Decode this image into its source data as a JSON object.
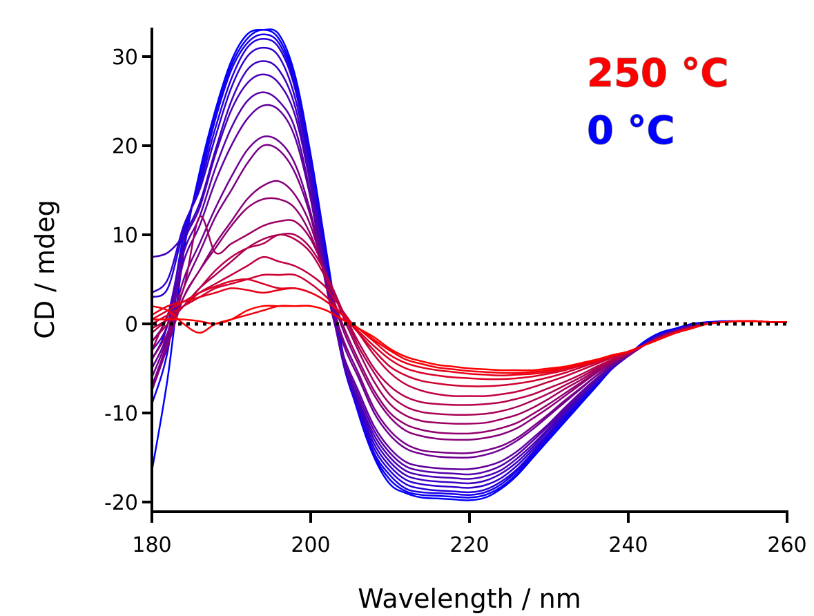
{
  "chart_data": {
    "type": "line",
    "title": "",
    "xlabel": "Wavelength / nm",
    "ylabel": "CD / mdeg",
    "xlim": [
      180,
      260
    ],
    "ylim": [
      -20,
      33
    ],
    "xticks": [
      180,
      200,
      220,
      240,
      260
    ],
    "yticks": [
      -20,
      -10,
      0,
      10,
      20,
      30
    ],
    "legend": {
      "placement": "top-right",
      "entries": [
        {
          "label": "250 °C",
          "color": "#ff0000"
        },
        {
          "label": "0 °C",
          "color": "#0000ff"
        }
      ]
    },
    "zero_line": {
      "y": 0,
      "style": "dotted",
      "color": "#000000"
    },
    "color_gradient": {
      "start": "#0000ff",
      "end": "#ff0000"
    },
    "x": [
      180,
      182,
      184,
      186,
      188,
      190,
      192,
      194,
      196,
      198,
      200,
      202,
      204,
      206,
      208,
      210,
      212,
      214,
      216,
      218,
      220,
      222,
      224,
      226,
      228,
      230,
      232,
      234,
      236,
      238,
      240,
      242,
      244,
      246,
      248,
      250,
      252,
      254,
      256,
      258,
      260
    ],
    "series": [
      {
        "values": [
          -16.5,
          -6,
          8,
          17,
          24,
          29.5,
          32.5,
          33,
          32.5,
          28,
          19,
          8,
          -3,
          -10,
          -15,
          -18,
          -19,
          -19.5,
          -19.6,
          -19.7,
          -19.8,
          -19.5,
          -18.5,
          -17,
          -15,
          -13,
          -11,
          -9,
          -7,
          -5,
          -3.5,
          -2,
          -1,
          -0.5,
          0,
          0.2,
          0.3,
          0.3,
          0.3,
          0.2,
          0.2
        ]
      },
      {
        "values": [
          -9,
          -3,
          9,
          16.5,
          23.5,
          29,
          32,
          33,
          32,
          27.5,
          18.5,
          7.5,
          -3.5,
          -10,
          -14.8,
          -17.5,
          -18.8,
          -19.2,
          -19.3,
          -19.4,
          -19.5,
          -19.2,
          -18.3,
          -16.8,
          -14.8,
          -12.8,
          -10.8,
          -8.8,
          -6.8,
          -5,
          -3.5,
          -2.1,
          -1.1,
          -0.6,
          -0.1,
          0.1,
          0.2,
          0.3,
          0.3,
          0.2,
          0.2
        ]
      },
      {
        "values": [
          -4,
          0,
          10,
          16,
          23,
          28.5,
          31.5,
          32.5,
          31.5,
          27,
          18,
          7,
          -4,
          -9.8,
          -14.5,
          -17,
          -18.5,
          -18.9,
          -19.0,
          -19.1,
          -19.2,
          -18.9,
          -18.0,
          -16.5,
          -14.6,
          -12.6,
          -10.6,
          -8.6,
          -6.7,
          -5,
          -3.6,
          -2.2,
          -1.2,
          -0.6,
          -0.1,
          0.1,
          0.2,
          0.3,
          0.3,
          0.2,
          0.2
        ]
      },
      {
        "values": [
          3,
          4,
          10.5,
          15.5,
          22,
          27.5,
          31,
          32,
          31,
          26.5,
          17.5,
          6.5,
          -4,
          -9.5,
          -14,
          -16.5,
          -18,
          -18.5,
          -18.7,
          -18.8,
          -18.9,
          -18.6,
          -17.7,
          -16.3,
          -14.4,
          -12.4,
          -10.4,
          -8.4,
          -6.6,
          -4.9,
          -3.6,
          -2.3,
          -1.3,
          -0.7,
          -0.2,
          0.1,
          0.2,
          0.3,
          0.3,
          0.2,
          0.2
        ]
      },
      {
        "values": [
          3.5,
          5,
          11,
          15,
          21,
          26.5,
          30,
          31,
          30,
          25.5,
          17,
          6,
          -4,
          -9.2,
          -13.5,
          -16,
          -17.5,
          -18,
          -18.2,
          -18.3,
          -18.4,
          -18.1,
          -17.3,
          -15.9,
          -14.1,
          -12.2,
          -10.2,
          -8.3,
          -6.5,
          -4.9,
          -3.6,
          -2.3,
          -1.3,
          -0.7,
          -0.2,
          0.1,
          0.2,
          0.3,
          0.3,
          0.2,
          0.2
        ]
      },
      {
        "values": [
          7.5,
          8,
          10,
          13.5,
          19.5,
          25,
          28.5,
          29.5,
          28.5,
          24.5,
          16,
          5.5,
          -4,
          -8.8,
          -13,
          -15.5,
          -17,
          -17.5,
          -17.7,
          -17.8,
          -17.9,
          -17.6,
          -16.8,
          -15.5,
          -13.8,
          -11.9,
          -10,
          -8.2,
          -6.4,
          -4.8,
          -3.6,
          -2.3,
          -1.3,
          -0.7,
          -0.2,
          0.1,
          0.2,
          0.3,
          0.3,
          0.2,
          0.2
        ]
      },
      {
        "values": [
          -2,
          1,
          9,
          13,
          19,
          24,
          27,
          28,
          27,
          23.5,
          15.5,
          5,
          -3.8,
          -8.5,
          -12.5,
          -15,
          -16.5,
          -17,
          -17.2,
          -17.3,
          -17.4,
          -17.1,
          -16.4,
          -15.1,
          -13.5,
          -11.7,
          -9.8,
          -8.1,
          -6.3,
          -4.8,
          -3.6,
          -2.3,
          -1.3,
          -0.7,
          -0.2,
          0.1,
          0.2,
          0.3,
          0.3,
          0.2,
          0.2
        ]
      },
      {
        "values": [
          -3,
          0,
          8,
          12,
          17.5,
          22,
          25,
          26,
          25,
          22,
          14.5,
          4.5,
          -3.5,
          -8,
          -12,
          -14.5,
          -16,
          -16.5,
          -16.7,
          -16.8,
          -16.9,
          -16.6,
          -15.9,
          -14.7,
          -13.1,
          -11.4,
          -9.6,
          -7.9,
          -6.2,
          -4.7,
          -3.6,
          -2.4,
          -1.4,
          -0.8,
          -0.3,
          0.1,
          0.2,
          0.3,
          0.3,
          0.2,
          0.2
        ]
      },
      {
        "values": [
          -5,
          -1,
          7,
          11,
          16,
          20,
          23,
          24.5,
          24,
          21,
          14,
          4,
          -3.2,
          -7.5,
          -11.5,
          -14,
          -15.5,
          -16,
          -16.2,
          -16.3,
          -16.3,
          -16.0,
          -15.4,
          -14.3,
          -12.8,
          -11.2,
          -9.4,
          -7.7,
          -6.1,
          -4.7,
          -3.6,
          -2.4,
          -1.4,
          -0.8,
          -0.3,
          0.1,
          0.2,
          0.3,
          0.3,
          0.2,
          0.2
        ]
      },
      {
        "values": [
          -6,
          -1.5,
          5,
          9,
          13,
          16.5,
          19.5,
          21,
          20.5,
          18,
          12.5,
          4.5,
          -2,
          -6,
          -10,
          -12.5,
          -14,
          -14.6,
          -14.9,
          -15.0,
          -15.0,
          -14.7,
          -14.1,
          -13.1,
          -11.8,
          -10.3,
          -8.8,
          -7.3,
          -5.8,
          -4.5,
          -3.5,
          -2.4,
          -1.5,
          -0.8,
          -0.3,
          0.1,
          0.2,
          0.3,
          0.3,
          0.2,
          0.2
        ]
      },
      {
        "values": [
          -7,
          -2,
          4,
          8,
          12,
          15,
          18,
          20,
          19.5,
          17,
          12,
          4.5,
          -1.5,
          -5.5,
          -9.5,
          -12,
          -13.5,
          -14.2,
          -14.4,
          -14.5,
          -14.5,
          -14.2,
          -13.7,
          -12.8,
          -11.5,
          -10.1,
          -8.6,
          -7.2,
          -5.8,
          -4.5,
          -3.5,
          -2.4,
          -1.5,
          -0.8,
          -0.3,
          0.1,
          0.2,
          0.3,
          0.3,
          0.2,
          0.2
        ]
      },
      {
        "values": [
          -7.5,
          -2.5,
          3,
          6,
          9,
          11.5,
          14,
          15.5,
          16,
          14.5,
          11,
          5,
          -0.5,
          -4.5,
          -8,
          -10.5,
          -12,
          -12.6,
          -12.9,
          -13.0,
          -13.0,
          -12.8,
          -12.4,
          -11.7,
          -10.6,
          -9.4,
          -8.1,
          -6.8,
          -5.5,
          -4.3,
          -3.4,
          -2.4,
          -1.5,
          -0.9,
          -0.4,
          0,
          0.2,
          0.3,
          0.3,
          0.2,
          0.2
        ]
      },
      {
        "values": [
          -4,
          -1,
          3,
          6,
          8.5,
          11,
          13,
          14,
          14,
          13,
          10,
          5,
          0,
          -4,
          -7.5,
          -10,
          -11.3,
          -11.9,
          -12.2,
          -12.3,
          -12.3,
          -12.1,
          -11.7,
          -11.1,
          -10.1,
          -9.0,
          -7.8,
          -6.6,
          -5.4,
          -4.3,
          -3.4,
          -2.4,
          -1.5,
          -0.9,
          -0.4,
          0,
          0.2,
          0.3,
          0.3,
          0.2,
          0.2
        ]
      },
      {
        "values": [
          -3,
          1,
          4,
          12,
          8,
          9,
          10,
          11,
          11.5,
          11.5,
          9.5,
          5.5,
          1,
          -3,
          -6.5,
          -9,
          -10.3,
          -10.9,
          -11.1,
          -11.2,
          -11.2,
          -11.1,
          -10.7,
          -10.2,
          -9.4,
          -8.4,
          -7.3,
          -6.3,
          -5.2,
          -4.2,
          -3.4,
          -2.4,
          -1.6,
          -0.9,
          -0.4,
          0,
          0.2,
          0.3,
          0.3,
          0.2,
          0.2
        ]
      },
      {
        "values": [
          -2,
          0,
          2,
          4,
          5.5,
          7,
          8.5,
          9.5,
          10,
          10,
          8.5,
          5.5,
          1.5,
          -2.5,
          -5.5,
          -8,
          -9.3,
          -9.9,
          -10.1,
          -10.2,
          -10.2,
          -10.1,
          -9.8,
          -9.3,
          -8.6,
          -7.8,
          -6.9,
          -6.0,
          -5.0,
          -4.1,
          -3.3,
          -2.4,
          -1.6,
          -0.9,
          -0.4,
          0,
          0.2,
          0.3,
          0.3,
          0.2,
          0.2
        ]
      },
      {
        "values": [
          -1,
          0.5,
          2,
          4,
          6,
          7.5,
          8.5,
          9,
          10,
          9.5,
          8,
          5,
          1.5,
          -2,
          -5,
          -7,
          -8.2,
          -8.8,
          -9.0,
          -9.1,
          -9.1,
          -9.0,
          -8.8,
          -8.4,
          -7.9,
          -7.2,
          -6.5,
          -5.7,
          -4.8,
          -4.0,
          -3.3,
          -2.4,
          -1.6,
          -0.9,
          -0.4,
          0,
          0.2,
          0.3,
          0.3,
          0.2,
          0.2
        ]
      },
      {
        "values": [
          -0.5,
          0.5,
          2,
          3.5,
          4.5,
          5.5,
          6.5,
          7.5,
          7,
          6.5,
          5.5,
          4,
          1.5,
          -1,
          -3.5,
          -5.5,
          -6.8,
          -7.5,
          -7.9,
          -8.1,
          -8.1,
          -8.1,
          -7.9,
          -7.6,
          -7.1,
          -6.5,
          -5.9,
          -5.2,
          -4.5,
          -3.8,
          -3.2,
          -2.4,
          -1.6,
          -0.9,
          -0.4,
          0,
          0.2,
          0.3,
          0.3,
          0.2,
          0.2
        ]
      },
      {
        "values": [
          0,
          1,
          2,
          3,
          4,
          4.5,
          5,
          5.5,
          5.5,
          5.5,
          4.5,
          3,
          1,
          -1,
          -3,
          -4.8,
          -5.8,
          -6.4,
          -6.7,
          -6.9,
          -7.0,
          -7.0,
          -6.9,
          -6.7,
          -6.4,
          -6.0,
          -5.5,
          -4.9,
          -4.3,
          -3.7,
          -3.1,
          -2.4,
          -1.6,
          -1.0,
          -0.5,
          0,
          0.2,
          0.3,
          0.3,
          0.2,
          0.2
        ]
      },
      {
        "values": [
          0.5,
          1.5,
          2.5,
          3.5,
          4.2,
          4.8,
          5,
          4.5,
          4,
          4,
          3.5,
          2.5,
          1,
          -0.8,
          -2.5,
          -4,
          -5,
          -5.5,
          -5.8,
          -6.0,
          -6.1,
          -6.2,
          -6.2,
          -6.1,
          -5.9,
          -5.6,
          -5.2,
          -4.7,
          -4.2,
          -3.6,
          -3.1,
          -2.4,
          -1.6,
          -1.0,
          -0.5,
          0,
          0.2,
          0.3,
          0.3,
          0.2,
          0.2
        ]
      },
      {
        "values": [
          1,
          2,
          2.5,
          3,
          3.5,
          4,
          3.8,
          3.5,
          3.8,
          4,
          3.5,
          2.5,
          1,
          -0.5,
          -2,
          -3.5,
          -4.4,
          -4.9,
          -5.2,
          -5.4,
          -5.6,
          -5.7,
          -5.8,
          -5.7,
          -5.6,
          -5.4,
          -5.0,
          -4.6,
          -4.1,
          -3.6,
          -3.1,
          -2.4,
          -1.7,
          -1.0,
          -0.5,
          0,
          0.2,
          0.3,
          0.3,
          0.2,
          0.2
        ]
      },
      {
        "values": [
          2,
          1.5,
          0,
          -1,
          0,
          0.5,
          1,
          1.5,
          2,
          2,
          2,
          1.5,
          0.5,
          -0.5,
          -1.8,
          -3,
          -4,
          -4.5,
          -4.9,
          -5.1,
          -5.3,
          -5.4,
          -5.5,
          -5.5,
          -5.4,
          -5.2,
          -4.9,
          -4.5,
          -4.1,
          -3.6,
          -3.1,
          -2.4,
          -1.7,
          -1.0,
          -0.5,
          0,
          0.2,
          0.3,
          0.3,
          0.2,
          0.2
        ]
      },
      {
        "values": [
          0.5,
          0.5,
          0.5,
          0.3,
          0,
          0.5,
          1.5,
          2,
          2,
          2,
          2,
          1.5,
          0.5,
          -0.5,
          -1.5,
          -2.8,
          -3.7,
          -4.2,
          -4.6,
          -4.8,
          -5.0,
          -5.1,
          -5.2,
          -5.2,
          -5.2,
          -5.0,
          -4.8,
          -4.4,
          -4.0,
          -3.5,
          -3.1,
          -2.4,
          -1.7,
          -1.0,
          -0.5,
          0,
          0.2,
          0.3,
          0.3,
          0.2,
          0.2
        ]
      }
    ]
  }
}
